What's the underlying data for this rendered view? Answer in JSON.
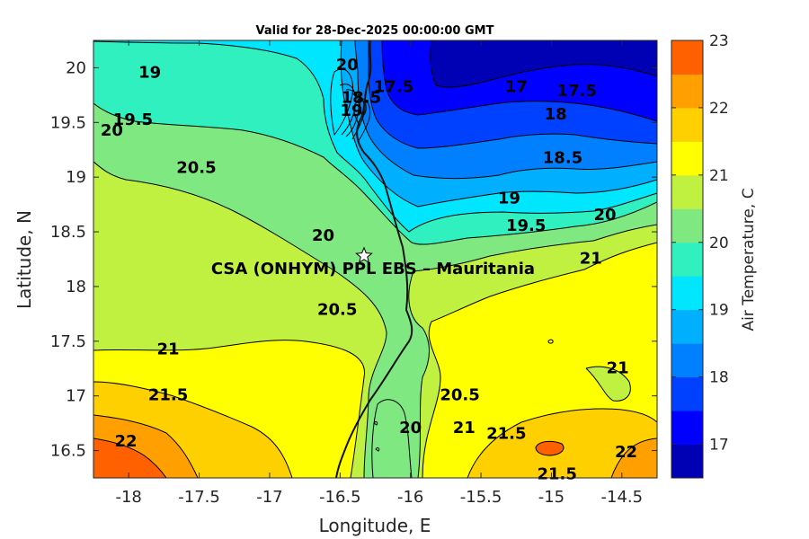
{
  "chart_data": {
    "type": "contour",
    "title": "Valid for 28-Dec-2025 00:00:00 GMT",
    "xlabel": "Longitude, E",
    "ylabel": "Latitude, N",
    "xlim": [
      -18.25,
      -14.25
    ],
    "ylim": [
      16.25,
      20.25
    ],
    "xticks": [
      -18,
      -17.5,
      -17,
      -16.5,
      -16,
      -15.5,
      -15,
      -14.5
    ],
    "xtick_labels": [
      "-18",
      "-17.5",
      "-17",
      "-16.5",
      "-16",
      "-15.5",
      "-15",
      "-14.5"
    ],
    "yticks": [
      16.5,
      17,
      17.5,
      18,
      18.5,
      19,
      19.5,
      20
    ],
    "ytick_labels": [
      "16.5",
      "17",
      "17.5",
      "18",
      "18.5",
      "19",
      "19.5",
      "20"
    ],
    "colorbar": {
      "label": "Air Temperature, C",
      "range": [
        16.5,
        23
      ],
      "ticks": [
        17,
        18,
        19,
        20,
        21,
        22,
        23
      ],
      "tick_labels": [
        "17",
        "18",
        "19",
        "20",
        "21",
        "22",
        "23"
      ],
      "levels": [
        16.5,
        17,
        17.5,
        18,
        18.5,
        19,
        19.5,
        20,
        20.5,
        21,
        21.5,
        22,
        22.5,
        23
      ],
      "colors": [
        "#0000b4",
        "#0000ff",
        "#0040ff",
        "#0080ff",
        "#00b0ff",
        "#00e6ff",
        "#30f0c0",
        "#80e880",
        "#c0f040",
        "#ffff00",
        "#ffd000",
        "#ffa000",
        "#ff6000",
        "#ff0000"
      ]
    },
    "contour_labels": [
      {
        "text": "19",
        "lon": -17.85,
        "lat": 19.95
      },
      {
        "text": "19.5",
        "lon": -17.97,
        "lat": 19.52
      },
      {
        "text": "20",
        "lon": -18.12,
        "lat": 19.42
      },
      {
        "text": "20.5",
        "lon": -17.52,
        "lat": 19.08
      },
      {
        "text": "17",
        "lon": -15.25,
        "lat": 19.82
      },
      {
        "text": "17.5",
        "lon": -14.82,
        "lat": 19.78
      },
      {
        "text": "18",
        "lon": -14.97,
        "lat": 19.57
      },
      {
        "text": "18.5",
        "lon": -14.92,
        "lat": 19.17
      },
      {
        "text": "19",
        "lon": -15.3,
        "lat": 18.8
      },
      {
        "text": "19.5",
        "lon": -15.18,
        "lat": 18.55
      },
      {
        "text": "20",
        "lon": -14.62,
        "lat": 18.65
      },
      {
        "text": "20",
        "lon": -16.62,
        "lat": 18.46
      },
      {
        "text": "20.5",
        "lon": -16.52,
        "lat": 17.78
      },
      {
        "text": "20.5",
        "lon": -15.65,
        "lat": 17.0
      },
      {
        "text": "20",
        "lon": -16.0,
        "lat": 16.7
      },
      {
        "text": "21",
        "lon": -15.62,
        "lat": 16.7
      },
      {
        "text": "21",
        "lon": -17.72,
        "lat": 17.42
      },
      {
        "text": "21.5",
        "lon": -17.72,
        "lat": 17.0
      },
      {
        "text": "22",
        "lon": -18.02,
        "lat": 16.58
      },
      {
        "text": "21",
        "lon": -14.72,
        "lat": 18.25
      },
      {
        "text": "21",
        "lon": -14.53,
        "lat": 17.25
      },
      {
        "text": "21.5",
        "lon": -15.32,
        "lat": 16.65
      },
      {
        "text": "21.5",
        "lon": -14.96,
        "lat": 16.28
      },
      {
        "text": "22",
        "lon": -14.47,
        "lat": 16.48
      },
      {
        "text": "20",
        "lon": -16.45,
        "lat": 20.02
      },
      {
        "text": "17.5",
        "lon": -16.12,
        "lat": 19.82
      },
      {
        "text": "18.5",
        "lon": -16.35,
        "lat": 19.72
      },
      {
        "text": "19",
        "lon": -16.42,
        "lat": 19.6
      }
    ],
    "site": {
      "name": "CSA (ONHYM) PPL EBS  – Mauritania",
      "lon": -16.33,
      "lat": 18.28
    }
  }
}
